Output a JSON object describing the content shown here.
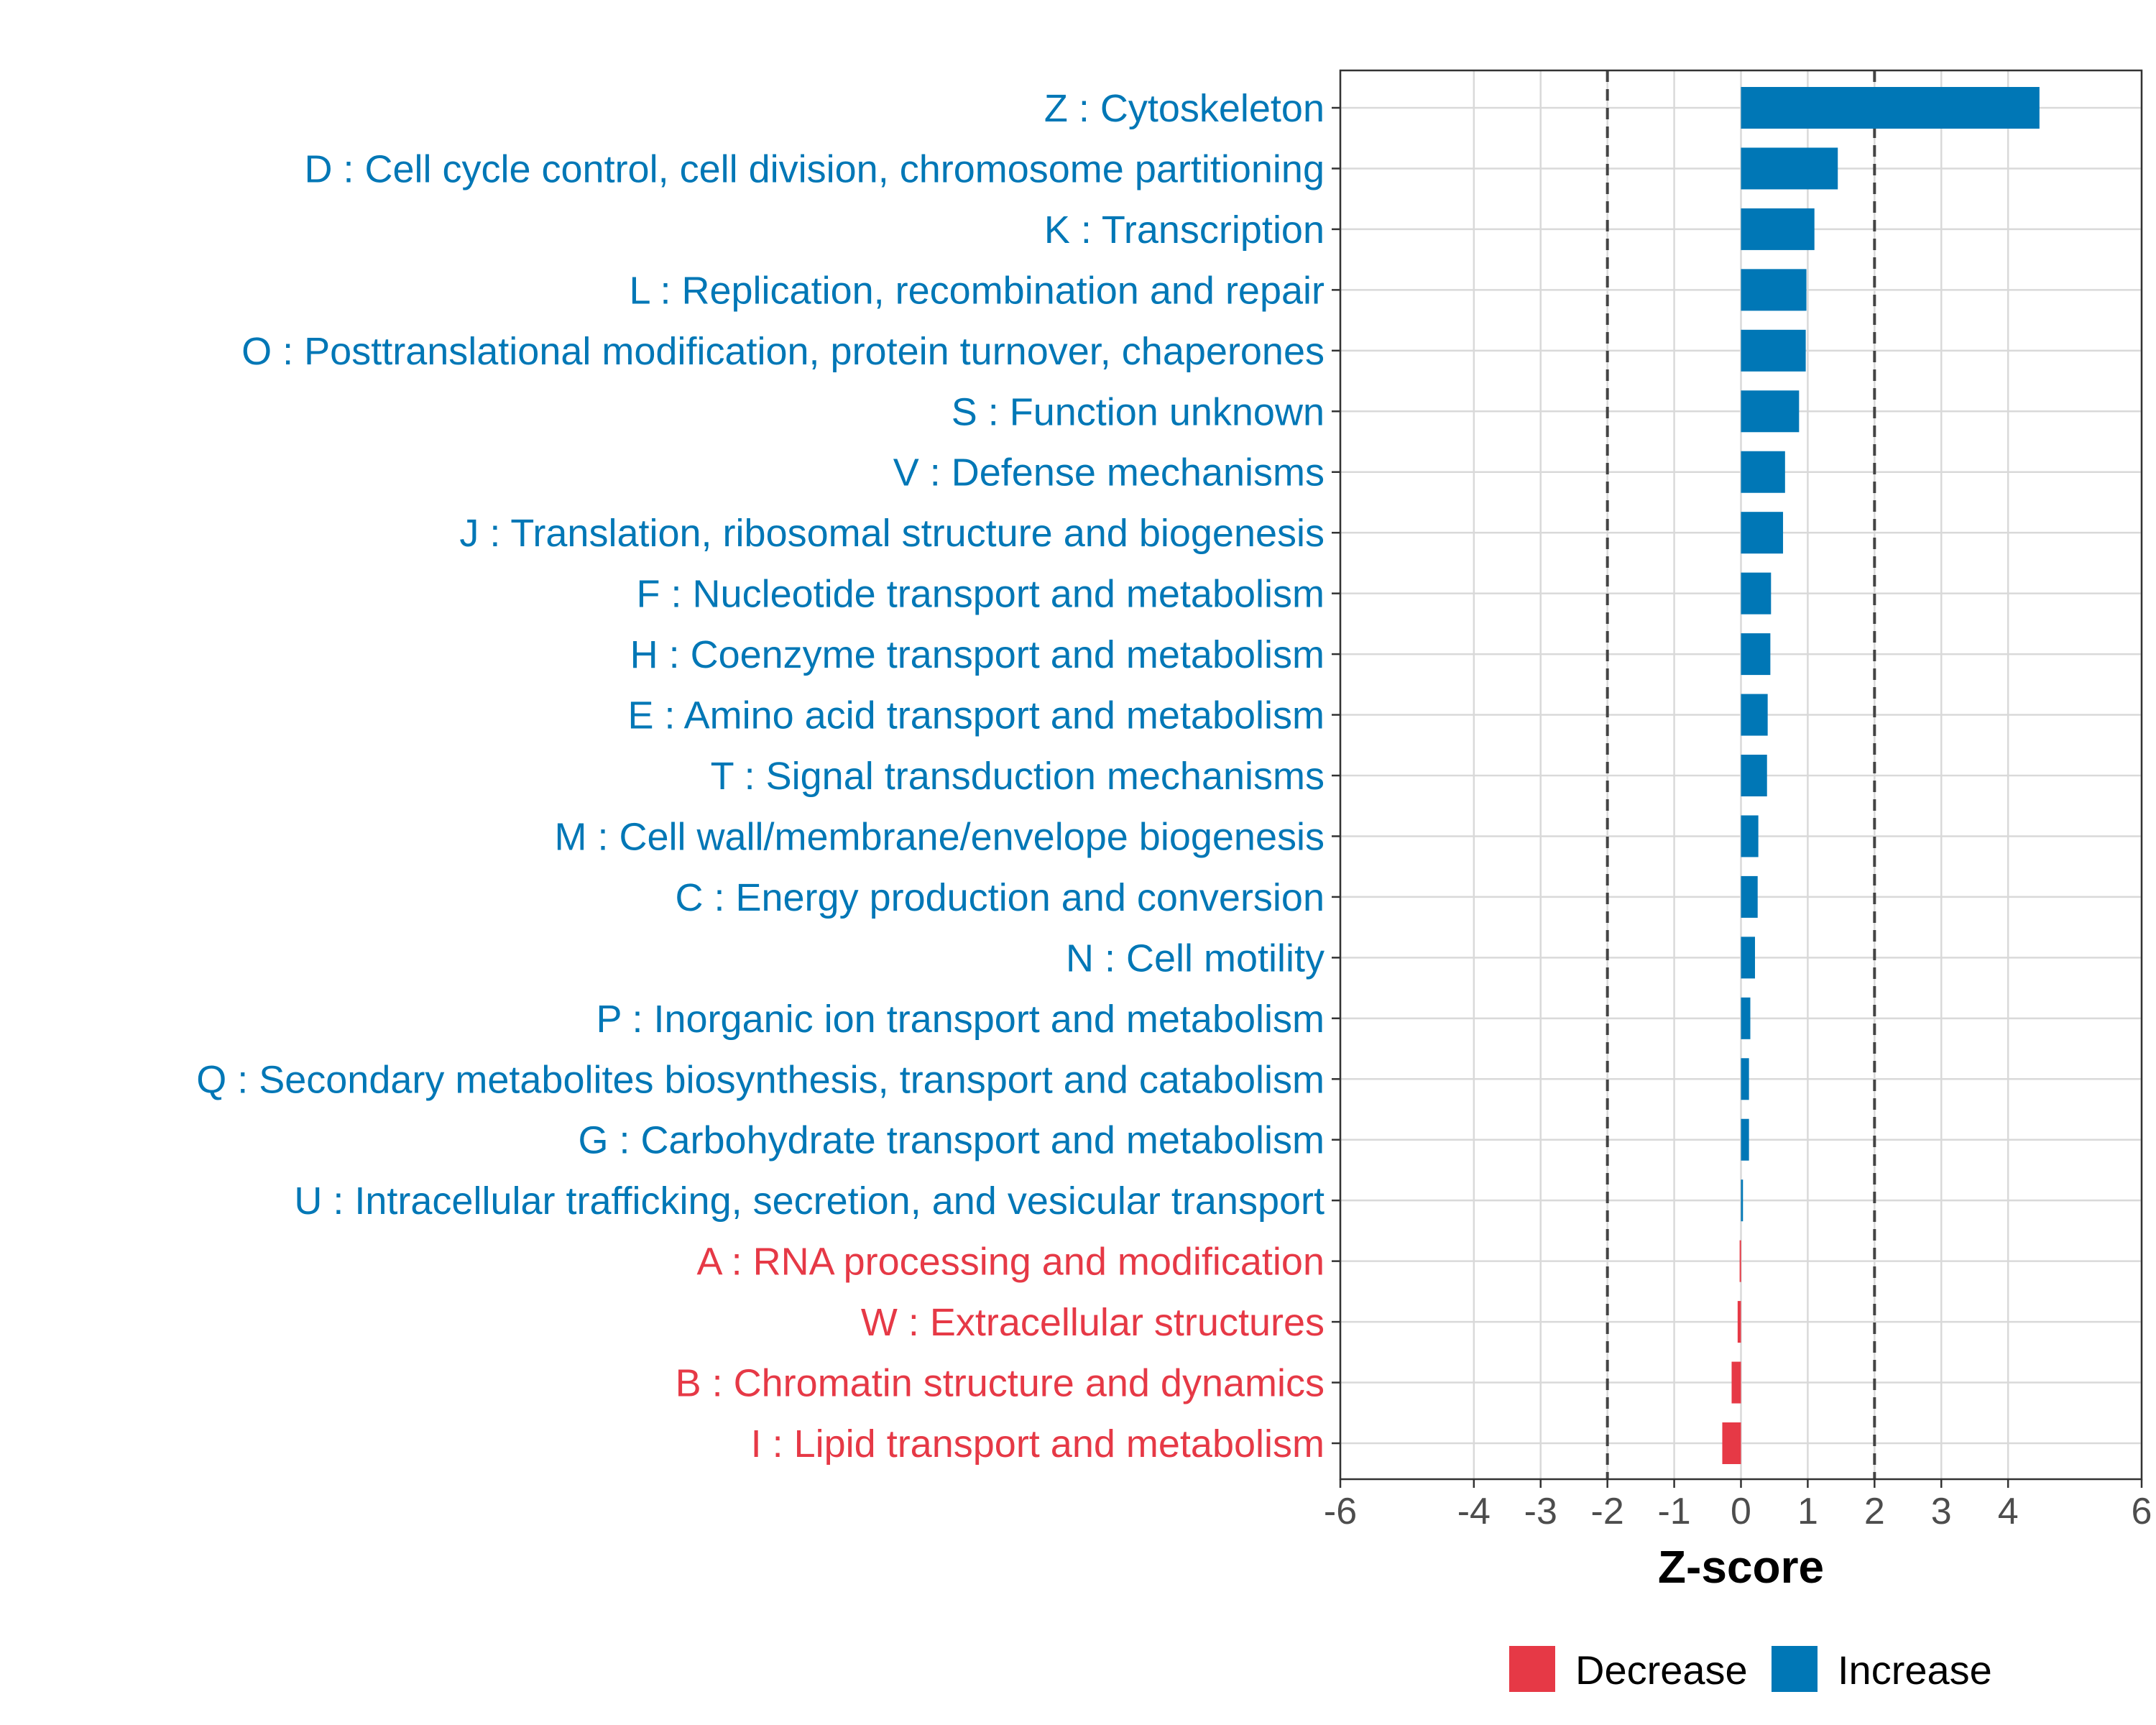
{
  "chart_data": {
    "type": "bar",
    "orientation": "horizontal",
    "xlabel": "Z-score",
    "ylabel": "",
    "xlim": [
      -6,
      6
    ],
    "x_ticks": [
      -6,
      -4,
      -3,
      -2,
      -1,
      0,
      1,
      2,
      3,
      4,
      6
    ],
    "reference_lines": [
      -2,
      2
    ],
    "grid": true,
    "legend_position": "bottom",
    "colors": {
      "Decrease": "#e63946",
      "Increase": "#0077b6"
    },
    "legend": [
      {
        "name": "Decrease",
        "color": "#e63946"
      },
      {
        "name": "Increase",
        "color": "#0077b6"
      }
    ],
    "categories": [
      "Z : Cytoskeleton",
      "D : Cell cycle control, cell division, chromosome partitioning",
      "K : Transcription",
      "L : Replication, recombination and repair",
      "O : Posttranslational modification, protein turnover, chaperones",
      "S : Function unknown",
      "V : Defense mechanisms",
      "J : Translation, ribosomal structure and biogenesis",
      "F : Nucleotide transport and metabolism",
      "H : Coenzyme transport and metabolism",
      "E : Amino acid transport and metabolism",
      "T : Signal transduction mechanisms",
      "M : Cell wall/membrane/envelope biogenesis",
      "C : Energy production and conversion",
      "N : Cell motility",
      "P : Inorganic ion transport and metabolism",
      "Q : Secondary metabolites biosynthesis, transport and catabolism",
      "G : Carbohydrate transport and metabolism",
      "U : Intracellular trafficking, secretion, and vesicular transport",
      "A : RNA processing and modification",
      "W : Extracellular structures",
      "B : Chromatin structure and dynamics",
      "I : Lipid transport and metabolism"
    ],
    "values": [
      4.47,
      1.45,
      1.1,
      0.98,
      0.97,
      0.87,
      0.66,
      0.63,
      0.45,
      0.44,
      0.4,
      0.39,
      0.26,
      0.25,
      0.21,
      0.14,
      0.12,
      0.12,
      0.03,
      -0.02,
      -0.05,
      -0.14,
      -0.28
    ],
    "direction": [
      "Increase",
      "Increase",
      "Increase",
      "Increase",
      "Increase",
      "Increase",
      "Increase",
      "Increase",
      "Increase",
      "Increase",
      "Increase",
      "Increase",
      "Increase",
      "Increase",
      "Increase",
      "Increase",
      "Increase",
      "Increase",
      "Increase",
      "Decrease",
      "Decrease",
      "Decrease",
      "Decrease"
    ]
  }
}
